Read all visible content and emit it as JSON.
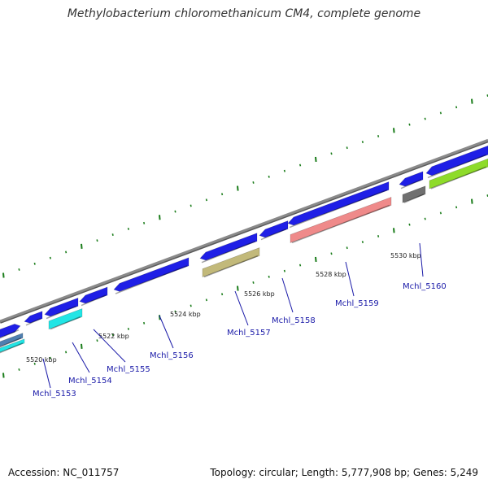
{
  "title": "Methylobacterium chloromethanicum CM4, complete genome",
  "footer": {
    "accession": "Accession: NC_011757",
    "stats": "Topology: circular; Length: 5,777,908 bp; Genes: 5,249"
  },
  "ticks": [
    {
      "kbp": 5520,
      "label": "5520 kbp"
    },
    {
      "kbp": 5522,
      "label": "5522 kbp"
    },
    {
      "kbp": 5524,
      "label": "5524 kbp"
    },
    {
      "kbp": 5526,
      "label": "5526 kbp"
    },
    {
      "kbp": 5528,
      "label": "5528 kbp"
    },
    {
      "kbp": 5530,
      "label": "5530 kbp"
    }
  ],
  "gene_labels": [
    {
      "name": "Mchl_5153"
    },
    {
      "name": "Mchl_5154"
    },
    {
      "name": "Mchl_5155"
    },
    {
      "name": "Mchl_5156"
    },
    {
      "name": "Mchl_5157"
    },
    {
      "name": "Mchl_5158"
    },
    {
      "name": "Mchl_5159"
    },
    {
      "name": "Mchl_5160"
    }
  ],
  "colors": {
    "backbone": "#8a8a8a",
    "cds_forward": "#1f1fe6",
    "cds_highlight_cyan": "#22e5e5",
    "cds_steelblue": "#4f7fb0",
    "cds_khaki": "#c2b97a",
    "cds_salmon": "#ef8a8a",
    "cds_gray": "#707070",
    "cds_lime": "#8edb2a",
    "tick": "#1b7d1b",
    "label": "#1a1aa8"
  }
}
